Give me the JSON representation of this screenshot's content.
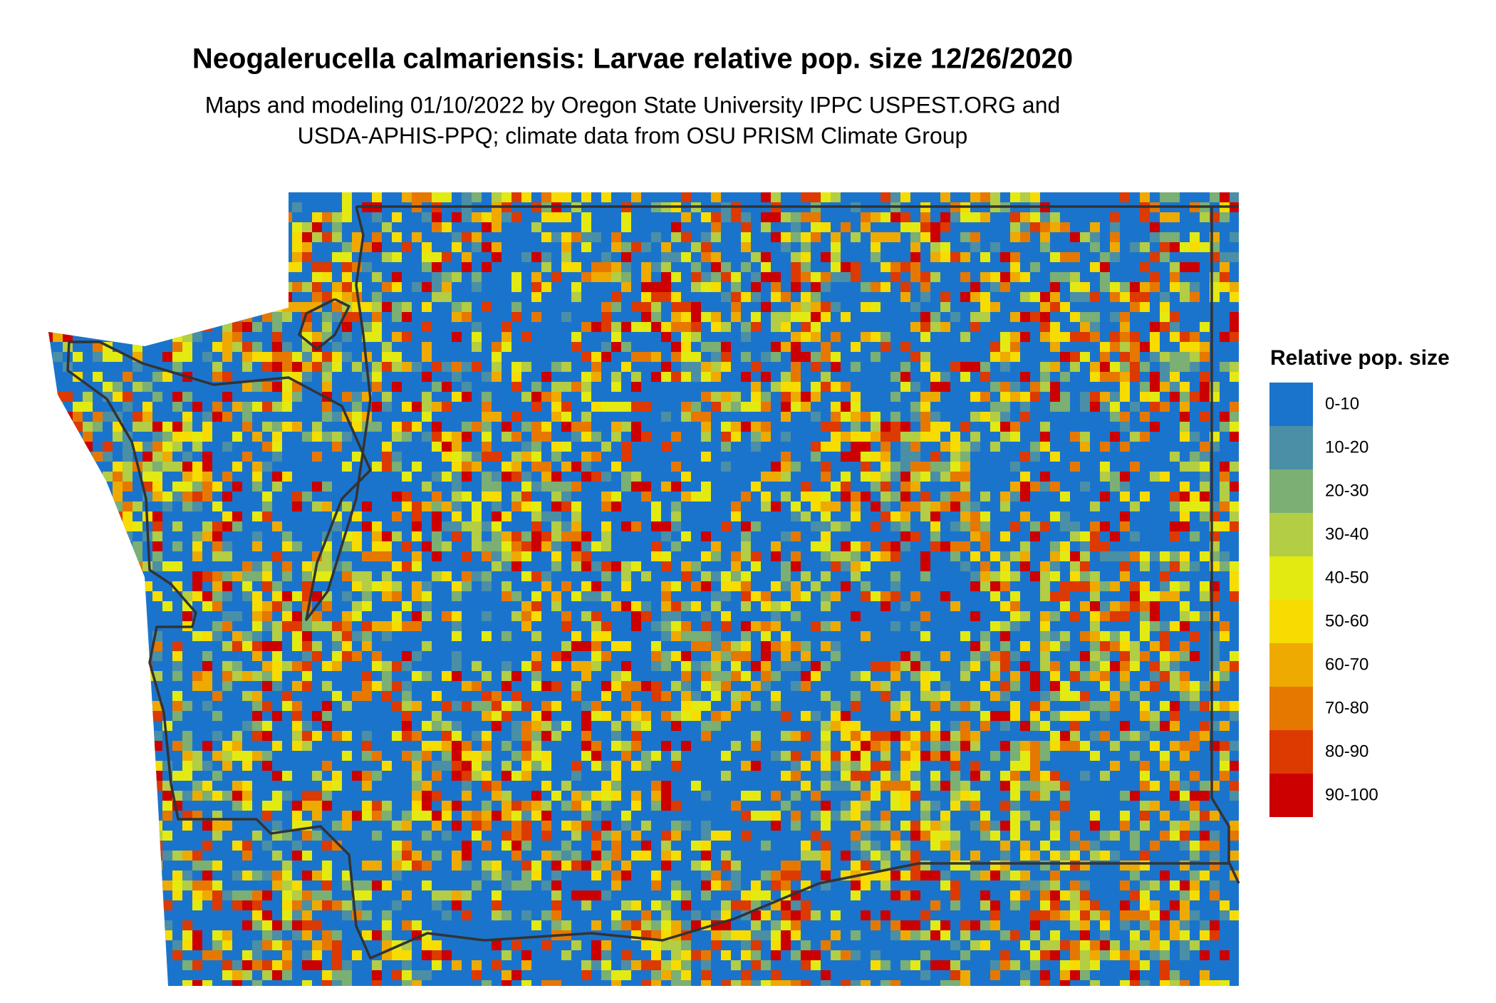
{
  "title": "Neogalerucella calmariensis: Larvae relative pop. size 12/26/2020",
  "subtitle": [
    "Maps and modeling 01/10/2022 by Oregon State University IPPC USPEST.ORG and",
    "USDA-APHIS-PPQ; climate data from OSU PRISM Climate Group"
  ],
  "legend": {
    "title": "Relative pop. size",
    "items": [
      {
        "label": "0-10",
        "color": "#1b74cc"
      },
      {
        "label": "10-20",
        "color": "#4a8fa6"
      },
      {
        "label": "20-30",
        "color": "#7baf73"
      },
      {
        "label": "30-40",
        "color": "#b3cd44"
      },
      {
        "label": "40-50",
        "color": "#e3ea12"
      },
      {
        "label": "50-60",
        "color": "#f6dc00"
      },
      {
        "label": "60-70",
        "color": "#eeaa00"
      },
      {
        "label": "70-80",
        "color": "#e67800"
      },
      {
        "label": "80-90",
        "color": "#dc3a00"
      },
      {
        "label": "90-100",
        "color": "#cc0000"
      }
    ]
  }
}
